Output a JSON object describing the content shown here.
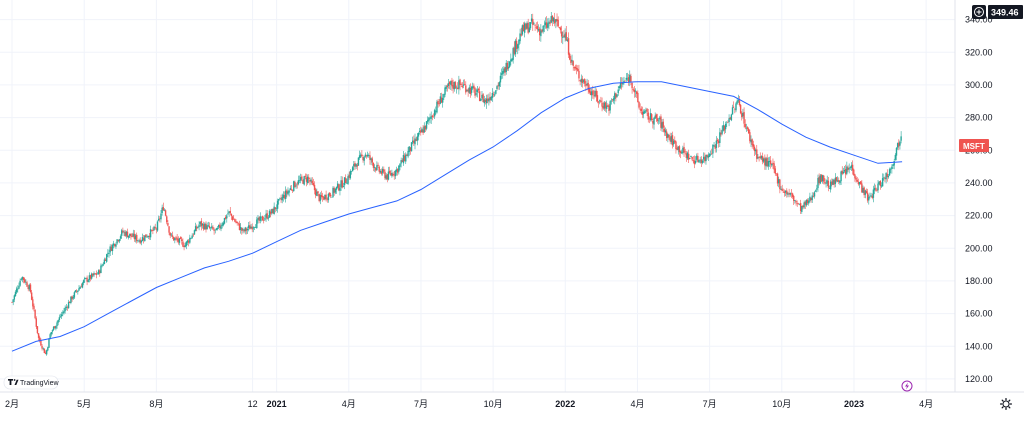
{
  "chart_data": {
    "type": "candlestick",
    "symbol": "MSFT",
    "current_price_label": "349.46",
    "brand": "TradingView",
    "colors": {
      "up": "#26a69a",
      "down": "#ef5350",
      "ma_line": "#2962ff",
      "symbol_tag": "#ef5350",
      "grid": "#f0f3fa",
      "axis_text": "#131722"
    },
    "ylim": [
      112,
      352
    ],
    "y_ticks": [
      120,
      140,
      160,
      180,
      200,
      220,
      240,
      260,
      280,
      300,
      320,
      340
    ],
    "y_tick_labels": [
      "120.00",
      "140.00",
      "160.00",
      "180.00",
      "200.00",
      "220.00",
      "240.00",
      "260.00",
      "280.00",
      "300.00",
      "320.00",
      "340.00"
    ],
    "x_ticks": [
      {
        "label": "2月",
        "month_index": 1
      },
      {
        "label": "5月",
        "month_index": 4
      },
      {
        "label": "8月",
        "month_index": 7
      },
      {
        "label": "12",
        "month_index": 11
      },
      {
        "label": "2021",
        "month_index": 12
      },
      {
        "label": "4月",
        "month_index": 15
      },
      {
        "label": "7月",
        "month_index": 18
      },
      {
        "label": "10月",
        "month_index": 21
      },
      {
        "label": "2022",
        "month_index": 24
      },
      {
        "label": "4月",
        "month_index": 27
      },
      {
        "label": "7月",
        "month_index": 30
      },
      {
        "label": "10月",
        "month_index": 33
      },
      {
        "label": "2023",
        "month_index": 36
      },
      {
        "label": "4月",
        "month_index": 39
      }
    ],
    "price_keypoints": [
      [
        1.0,
        167
      ],
      [
        1.4,
        183
      ],
      [
        1.75,
        175
      ],
      [
        2.1,
        145
      ],
      [
        2.4,
        135
      ],
      [
        2.6,
        148
      ],
      [
        3.0,
        158
      ],
      [
        3.5,
        170
      ],
      [
        4.0,
        180
      ],
      [
        4.6,
        185
      ],
      [
        5.0,
        198
      ],
      [
        5.6,
        210
      ],
      [
        6.3,
        205
      ],
      [
        7.0,
        212
      ],
      [
        7.3,
        226
      ],
      [
        7.6,
        207
      ],
      [
        8.2,
        202
      ],
      [
        8.8,
        215
      ],
      [
        9.5,
        210
      ],
      [
        10.0,
        222
      ],
      [
        10.6,
        210
      ],
      [
        11.1,
        215
      ],
      [
        11.8,
        222
      ],
      [
        12.3,
        232
      ],
      [
        12.8,
        240
      ],
      [
        13.3,
        243
      ],
      [
        13.8,
        230
      ],
      [
        14.3,
        234
      ],
      [
        14.9,
        242
      ],
      [
        15.3,
        252
      ],
      [
        15.7,
        258
      ],
      [
        16.2,
        248
      ],
      [
        16.6,
        244
      ],
      [
        17.0,
        248
      ],
      [
        17.6,
        262
      ],
      [
        18.2,
        275
      ],
      [
        18.7,
        288
      ],
      [
        19.2,
        300
      ],
      [
        19.7,
        300
      ],
      [
        20.2,
        296
      ],
      [
        20.7,
        290
      ],
      [
        21.2,
        300
      ],
      [
        21.5,
        310
      ],
      [
        21.9,
        323
      ],
      [
        22.2,
        333
      ],
      [
        22.6,
        337
      ],
      [
        23.0,
        333
      ],
      [
        23.5,
        340
      ],
      [
        24.0,
        330
      ],
      [
        24.3,
        312
      ],
      [
        24.6,
        305
      ],
      [
        25.0,
        298
      ],
      [
        25.4,
        290
      ],
      [
        25.8,
        286
      ],
      [
        26.3,
        300
      ],
      [
        26.7,
        305
      ],
      [
        27.1,
        285
      ],
      [
        27.5,
        280
      ],
      [
        27.9,
        278
      ],
      [
        28.3,
        268
      ],
      [
        28.8,
        260
      ],
      [
        29.3,
        254
      ],
      [
        29.8,
        255
      ],
      [
        30.3,
        265
      ],
      [
        30.8,
        280
      ],
      [
        31.2,
        290
      ],
      [
        31.6,
        270
      ],
      [
        32.0,
        256
      ],
      [
        32.6,
        250
      ],
      [
        33.0,
        236
      ],
      [
        33.4,
        232
      ],
      [
        33.8,
        224
      ],
      [
        34.2,
        230
      ],
      [
        34.6,
        244
      ],
      [
        35.0,
        238
      ],
      [
        35.5,
        245
      ],
      [
        35.9,
        250
      ],
      [
        36.2,
        240
      ],
      [
        36.6,
        230
      ],
      [
        37.1,
        240
      ],
      [
        37.5,
        248
      ],
      [
        37.8,
        262
      ],
      [
        38.0,
        272
      ]
    ],
    "moving_average": [
      [
        1.0,
        137
      ],
      [
        2.0,
        143
      ],
      [
        3.0,
        146
      ],
      [
        4.0,
        152
      ],
      [
        5.0,
        160
      ],
      [
        6.0,
        168
      ],
      [
        7.0,
        176
      ],
      [
        8.0,
        182
      ],
      [
        9.0,
        188
      ],
      [
        10.0,
        192
      ],
      [
        11.0,
        197
      ],
      [
        12.0,
        204
      ],
      [
        13.0,
        211
      ],
      [
        14.0,
        216
      ],
      [
        15.0,
        221
      ],
      [
        16.0,
        225
      ],
      [
        17.0,
        229
      ],
      [
        18.0,
        236
      ],
      [
        19.0,
        245
      ],
      [
        20.0,
        254
      ],
      [
        21.0,
        262
      ],
      [
        22.0,
        272
      ],
      [
        23.0,
        283
      ],
      [
        24.0,
        292
      ],
      [
        25.0,
        298
      ],
      [
        26.0,
        301
      ],
      [
        27.0,
        302
      ],
      [
        28.0,
        302
      ],
      [
        29.0,
        299
      ],
      [
        30.0,
        296
      ],
      [
        31.0,
        293
      ],
      [
        32.0,
        285
      ],
      [
        33.0,
        276
      ],
      [
        34.0,
        268
      ],
      [
        35.0,
        262
      ],
      [
        36.0,
        257
      ],
      [
        37.0,
        252
      ],
      [
        38.0,
        253
      ]
    ],
    "x_range": [
      0.5,
      40.2
    ]
  }
}
